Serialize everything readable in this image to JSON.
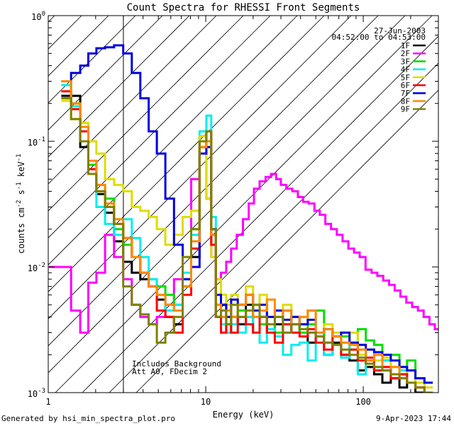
{
  "chart_data": {
    "type": "line",
    "title": "Count Spectra for RHESSI Front Segments",
    "xlabel": "Energy (keV)",
    "ylabel_parts": [
      "counts cm",
      "-2",
      " s",
      "-1",
      " keV",
      "-1"
    ],
    "xscale": "log",
    "yscale": "log",
    "xlim": [
      1,
      300
    ],
    "ylim": [
      0.001,
      1
    ],
    "x_ticks": [
      {
        "v": 1,
        "label": "1"
      },
      {
        "v": 10,
        "label": "10"
      },
      {
        "v": 100,
        "label": "100"
      }
    ],
    "y_ticks": [
      {
        "v": 0.001,
        "base": "10",
        "exp": "-3"
      },
      {
        "v": 0.01,
        "base": "10",
        "exp": "-2"
      },
      {
        "v": 0.1,
        "base": "10",
        "exp": "-1"
      },
      {
        "v": 1,
        "base": "10",
        "exp": "0"
      }
    ],
    "shaded_region": {
      "x": [
        1,
        3
      ],
      "style": "diagonal-hatch"
    },
    "date": "27-Jun-2003",
    "time_range": "04:52:00 to 04:53:00",
    "annotations": [
      "Includes Background",
      "Att A0, FDecim 2"
    ],
    "legend_position": "top-right",
    "series": [
      {
        "name": "1F",
        "color": "#000000",
        "x": [
          1.3,
          1.5,
          1.7,
          1.9,
          2.15,
          2.45,
          2.8,
          3.2,
          3.6,
          4.1,
          4.6,
          5.2,
          5.9,
          6.7,
          7.6,
          8.6,
          9.7,
          10.5,
          11.2,
          12,
          13,
          14,
          15,
          17,
          19,
          21,
          23,
          26,
          29,
          33,
          37,
          42,
          47,
          53,
          60,
          68,
          77,
          87,
          98,
          110,
          125,
          140,
          160,
          180,
          200,
          230,
          260
        ],
        "y": [
          0.23,
          0.23,
          0.09,
          0.055,
          0.038,
          0.027,
          0.016,
          0.011,
          0.009,
          0.008,
          0.007,
          0.0055,
          0.004,
          0.0035,
          0.007,
          0.012,
          0.09,
          0.1,
          0.018,
          0.004,
          0.005,
          0.003,
          0.004,
          0.0035,
          0.005,
          0.003,
          0.004,
          0.003,
          0.0035,
          0.003,
          0.004,
          0.003,
          0.0025,
          0.003,
          0.002,
          0.0025,
          0.002,
          0.0018,
          0.0015,
          0.0016,
          0.0014,
          0.0012,
          0.0013,
          0.0011,
          0.0012,
          0.001,
          0.001
        ]
      },
      {
        "name": "2F",
        "color": "#ff00ff",
        "x": [
          1.1,
          1.3,
          1.5,
          1.7,
          1.9,
          2.15,
          2.45,
          2.8,
          3.2,
          3.6,
          4.1,
          4.6,
          5.2,
          5.9,
          6.7,
          7.6,
          8.6,
          9.7,
          10.5,
          11.2,
          12,
          13,
          14,
          15,
          16.5,
          18,
          19.5,
          21,
          23,
          25,
          27,
          29,
          31,
          34,
          37,
          40,
          43,
          47,
          51,
          55,
          60,
          65,
          71,
          77,
          84,
          91,
          99,
          108,
          118,
          128,
          140,
          152,
          165,
          180,
          196,
          213,
          232,
          252,
          275,
          295
        ],
        "y": [
          0.01,
          0.01,
          0.0045,
          0.003,
          0.0075,
          0.009,
          0.018,
          0.012,
          0.008,
          0.005,
          0.004,
          0.0035,
          0.004,
          0.005,
          0.008,
          0.012,
          0.05,
          0.11,
          0.035,
          0.012,
          0.008,
          0.009,
          0.011,
          0.014,
          0.018,
          0.024,
          0.032,
          0.042,
          0.048,
          0.052,
          0.055,
          0.05,
          0.045,
          0.042,
          0.04,
          0.036,
          0.033,
          0.032,
          0.028,
          0.026,
          0.022,
          0.02,
          0.018,
          0.016,
          0.014,
          0.013,
          0.012,
          0.0095,
          0.009,
          0.0085,
          0.0078,
          0.0072,
          0.0065,
          0.0058,
          0.0052,
          0.0048,
          0.0045,
          0.004,
          0.0035,
          0.0032
        ]
      },
      {
        "name": "3F",
        "color": "#00dd00",
        "x": [
          1.3,
          1.5,
          1.7,
          1.9,
          2.15,
          2.45,
          2.8,
          3.2,
          3.6,
          4.1,
          4.6,
          5.2,
          5.9,
          6.7,
          7.6,
          8.6,
          9.7,
          10.5,
          11.2,
          12,
          13,
          14,
          15,
          17,
          19,
          21,
          23,
          26,
          29,
          33,
          37,
          42,
          47,
          53,
          60,
          68,
          77,
          87,
          98,
          110,
          125,
          140,
          160,
          180,
          200,
          230,
          260
        ],
        "y": [
          0.3,
          0.2,
          0.14,
          0.065,
          0.045,
          0.035,
          0.02,
          0.015,
          0.012,
          0.009,
          0.008,
          0.007,
          0.006,
          0.005,
          0.008,
          0.02,
          0.1,
          0.12,
          0.02,
          0.005,
          0.004,
          0.0035,
          0.004,
          0.0045,
          0.004,
          0.005,
          0.0035,
          0.004,
          0.003,
          0.0045,
          0.0035,
          0.003,
          0.0035,
          0.0045,
          0.0025,
          0.003,
          0.0028,
          0.0022,
          0.0032,
          0.0026,
          0.0024,
          0.0018,
          0.002,
          0.0016,
          0.0018,
          0.0013,
          0.0012
        ]
      },
      {
        "name": "4F",
        "color": "#00eeee",
        "x": [
          1.3,
          1.5,
          1.7,
          1.9,
          2.15,
          2.45,
          2.8,
          3.2,
          3.6,
          4.1,
          4.6,
          5.2,
          5.9,
          6.7,
          7.6,
          8.6,
          9.7,
          10.5,
          11.2,
          12,
          13,
          14,
          15,
          17,
          19,
          21,
          23,
          26,
          29,
          33,
          37,
          42,
          47,
          53,
          60,
          68,
          77,
          87,
          98,
          110,
          125,
          140,
          160,
          180,
          200,
          230,
          260
        ],
        "y": [
          0.28,
          0.19,
          0.12,
          0.06,
          0.03,
          0.022,
          0.018,
          0.024,
          0.017,
          0.012,
          0.008,
          0.006,
          0.0045,
          0.005,
          0.009,
          0.018,
          0.12,
          0.16,
          0.025,
          0.004,
          0.0035,
          0.003,
          0.0035,
          0.003,
          0.004,
          0.003,
          0.0025,
          0.0032,
          0.0028,
          0.002,
          0.0024,
          0.0025,
          0.0018,
          0.0028,
          0.002,
          0.0024,
          0.0019,
          0.0025,
          0.0014,
          0.0022,
          0.0016,
          0.0018,
          0.0013,
          0.0015,
          0.0012,
          0.0011,
          0.001
        ]
      },
      {
        "name": "5F",
        "color": "#dddd00",
        "x": [
          1.3,
          1.5,
          1.7,
          1.9,
          2.15,
          2.45,
          2.8,
          3.2,
          3.6,
          4.1,
          4.6,
          5.2,
          5.9,
          6.7,
          7.6,
          8.6,
          9.7,
          10.5,
          11.2,
          12,
          13,
          14,
          15,
          17,
          19,
          21,
          23,
          26,
          29,
          33,
          37,
          42,
          47,
          53,
          60,
          68,
          77,
          87,
          98,
          110,
          125,
          140,
          160,
          180,
          200,
          230,
          260
        ],
        "y": [
          0.21,
          0.15,
          0.14,
          0.1,
          0.08,
          0.05,
          0.045,
          0.04,
          0.03,
          0.028,
          0.025,
          0.02,
          0.015,
          0.018,
          0.025,
          0.028,
          0.11,
          0.035,
          0.012,
          0.008,
          0.006,
          0.005,
          0.006,
          0.005,
          0.007,
          0.005,
          0.006,
          0.004,
          0.0045,
          0.005,
          0.004,
          0.0035,
          0.0045,
          0.003,
          0.0035,
          0.003,
          0.0025,
          0.003,
          0.002,
          0.0022,
          0.0018,
          0.0019,
          0.0016,
          0.0014,
          0.0015,
          0.0012,
          0.0011
        ]
      },
      {
        "name": "6F",
        "color": "#ff0000",
        "x": [
          1.3,
          1.5,
          1.7,
          1.9,
          2.15,
          2.45,
          2.8,
          3.2,
          3.6,
          4.1,
          4.6,
          5.2,
          5.9,
          6.7,
          7.6,
          8.6,
          9.7,
          10.5,
          11.2,
          12,
          13,
          14,
          15,
          17,
          19,
          21,
          23,
          26,
          29,
          33,
          37,
          42,
          47,
          53,
          60,
          68,
          77,
          87,
          98,
          110,
          125,
          140,
          160,
          180,
          200,
          230,
          260
        ],
        "y": [
          0.25,
          0.18,
          0.12,
          0.06,
          0.04,
          0.03,
          0.022,
          0.017,
          0.012,
          0.009,
          0.007,
          0.0045,
          0.004,
          0.003,
          0.006,
          0.014,
          0.09,
          0.12,
          0.015,
          0.004,
          0.003,
          0.0035,
          0.003,
          0.004,
          0.0035,
          0.003,
          0.004,
          0.003,
          0.0025,
          0.0035,
          0.003,
          0.0028,
          0.0032,
          0.0025,
          0.0022,
          0.0028,
          0.002,
          0.0022,
          0.0018,
          0.0019,
          0.0015,
          0.0016,
          0.0013,
          0.0014,
          0.0012,
          0.0011,
          0.001
        ]
      },
      {
        "name": "7F",
        "color": "#0000dd",
        "x": [
          1.3,
          1.5,
          1.7,
          1.9,
          2.15,
          2.45,
          2.8,
          3.2,
          3.6,
          4.1,
          4.6,
          5.2,
          5.9,
          6.7,
          7.6,
          8.6,
          9.7,
          10.5,
          11.2,
          12,
          13,
          14,
          15,
          17,
          19,
          21,
          23,
          26,
          29,
          33,
          37,
          42,
          47,
          53,
          60,
          68,
          77,
          87,
          98,
          110,
          125,
          140,
          160,
          180,
          200,
          230,
          260
        ],
        "y": [
          0.3,
          0.35,
          0.4,
          0.5,
          0.55,
          0.56,
          0.58,
          0.5,
          0.35,
          0.22,
          0.12,
          0.08,
          0.035,
          0.015,
          0.008,
          0.01,
          0.08,
          0.09,
          0.02,
          0.006,
          0.005,
          0.004,
          0.0055,
          0.005,
          0.006,
          0.0045,
          0.005,
          0.004,
          0.0045,
          0.0038,
          0.004,
          0.0035,
          0.0038,
          0.003,
          0.0032,
          0.0028,
          0.003,
          0.0025,
          0.0024,
          0.0022,
          0.0021,
          0.002,
          0.0018,
          0.0016,
          0.0015,
          0.0013,
          0.0012
        ]
      },
      {
        "name": "8F",
        "color": "#ff8800",
        "x": [
          1.3,
          1.5,
          1.7,
          1.9,
          2.15,
          2.45,
          2.8,
          3.2,
          3.6,
          4.1,
          4.6,
          5.2,
          5.9,
          6.7,
          7.6,
          8.6,
          9.7,
          10.5,
          11.2,
          12,
          13,
          14,
          15,
          17,
          19,
          21,
          23,
          26,
          29,
          33,
          37,
          42,
          47,
          53,
          60,
          68,
          77,
          87,
          98,
          110,
          125,
          140,
          160,
          180,
          200,
          230,
          260
        ],
        "y": [
          0.3,
          0.2,
          0.13,
          0.07,
          0.045,
          0.032,
          0.024,
          0.017,
          0.012,
          0.009,
          0.007,
          0.006,
          0.005,
          0.0045,
          0.007,
          0.016,
          0.09,
          0.1,
          0.018,
          0.005,
          0.004,
          0.0045,
          0.004,
          0.005,
          0.006,
          0.004,
          0.0045,
          0.0055,
          0.004,
          0.0045,
          0.0035,
          0.004,
          0.0045,
          0.003,
          0.0032,
          0.0028,
          0.0025,
          0.0024,
          0.0022,
          0.0018,
          0.002,
          0.0015,
          0.0016,
          0.0013,
          0.0012,
          0.0011,
          0.001
        ]
      },
      {
        "name": "9F",
        "color": "#808000",
        "x": [
          1.3,
          1.5,
          1.7,
          1.9,
          2.15,
          2.45,
          2.8,
          3.2,
          3.6,
          4.1,
          4.6,
          5.2,
          5.9,
          6.7,
          7.6,
          8.6,
          9.7,
          10.5,
          11.2,
          12,
          13,
          14,
          15,
          17,
          19,
          21,
          23,
          26,
          29,
          33,
          37,
          42,
          47,
          53,
          60,
          68,
          77,
          87,
          98,
          110,
          125,
          140,
          160,
          180,
          200,
          230,
          260
        ],
        "y": [
          0.22,
          0.15,
          0.1,
          0.055,
          0.04,
          0.03,
          0.022,
          0.007,
          0.005,
          0.0042,
          0.0035,
          0.0025,
          0.003,
          0.004,
          0.012,
          0.02,
          0.1,
          0.12,
          0.02,
          0.004,
          0.0045,
          0.0035,
          0.005,
          0.004,
          0.0045,
          0.005,
          0.004,
          0.0035,
          0.004,
          0.003,
          0.0035,
          0.0032,
          0.003,
          0.0028,
          0.0025,
          0.0024,
          0.0022,
          0.002,
          0.0019,
          0.0017,
          0.0016,
          0.0015,
          0.0014,
          0.0013,
          0.0012,
          0.0011,
          0.001
        ]
      }
    ]
  },
  "footer": {
    "generated_by": "Generated by hsi_min_spectra_plot.pro",
    "timestamp": "9-Apr-2023 17:44"
  }
}
